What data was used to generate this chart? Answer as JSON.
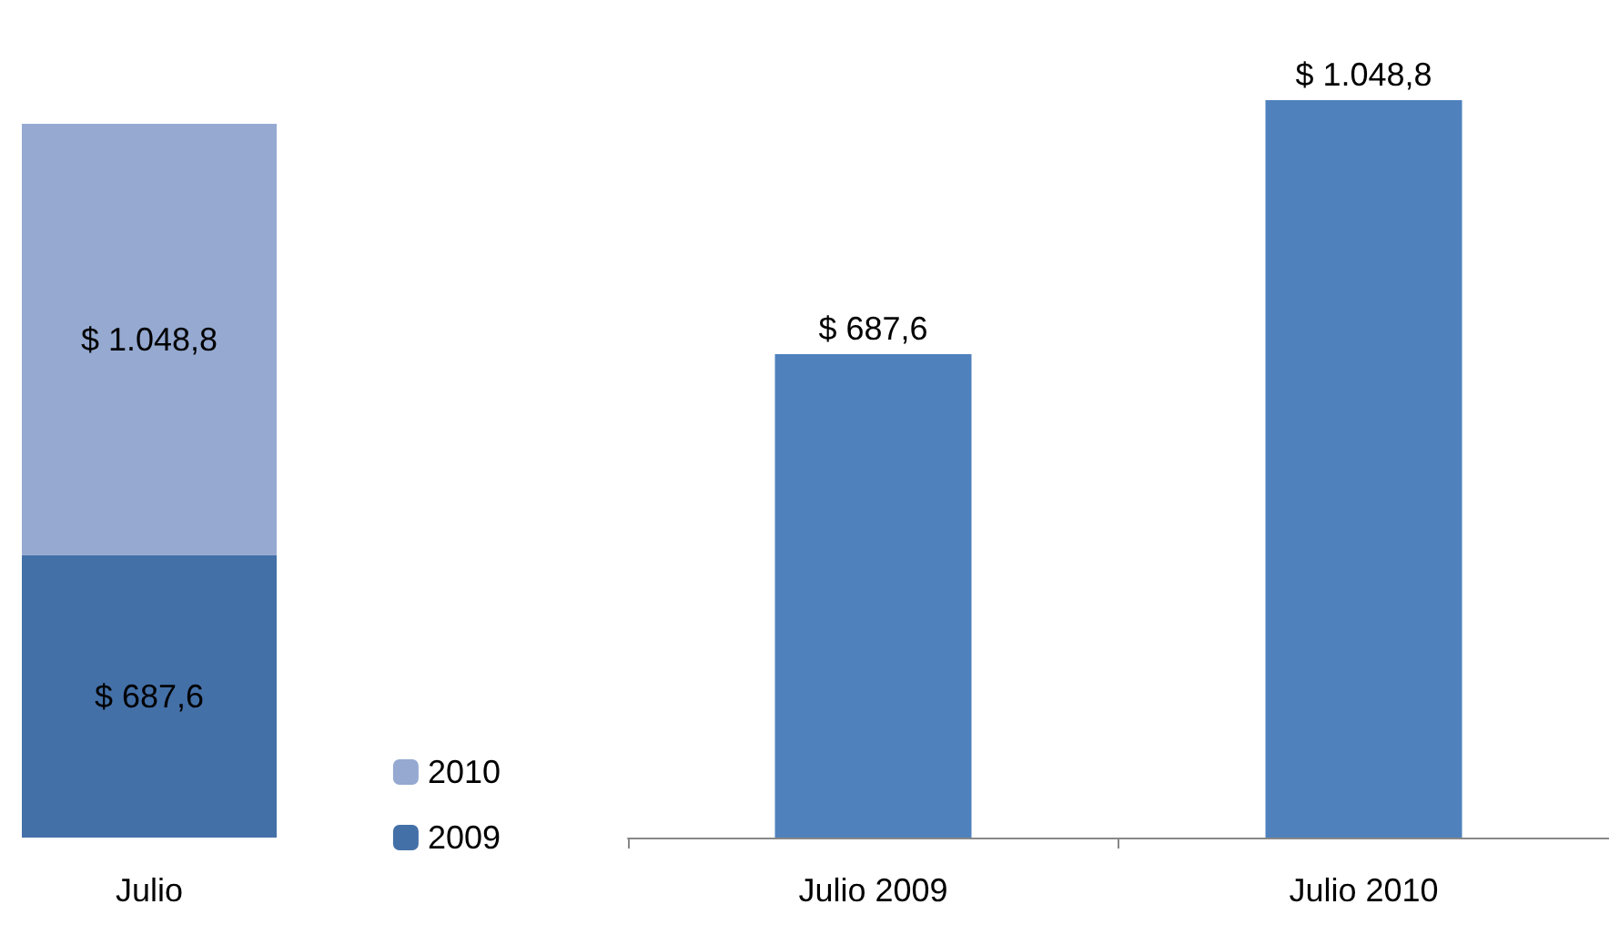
{
  "chart_data": [
    {
      "type": "bar",
      "stacked": true,
      "categories": [
        "Julio"
      ],
      "legend": "bottom right",
      "series": [
        {
          "name": "2009",
          "color": "#4470a8",
          "values": [
            687.6
          ],
          "value_labels": [
            "$ 687,6"
          ]
        },
        {
          "name": "2010",
          "color": "#95a9d1",
          "values": [
            1048.8
          ],
          "value_labels": [
            "$ 1.048,8"
          ]
        }
      ]
    },
    {
      "type": "bar",
      "categories": [
        "Julio 2009",
        "Julio 2010"
      ],
      "color": "#4f81bd",
      "values": [
        687.6,
        1048.8
      ],
      "value_labels": [
        "$ 687,6",
        "$ 1.048,8"
      ],
      "legend": false
    }
  ]
}
